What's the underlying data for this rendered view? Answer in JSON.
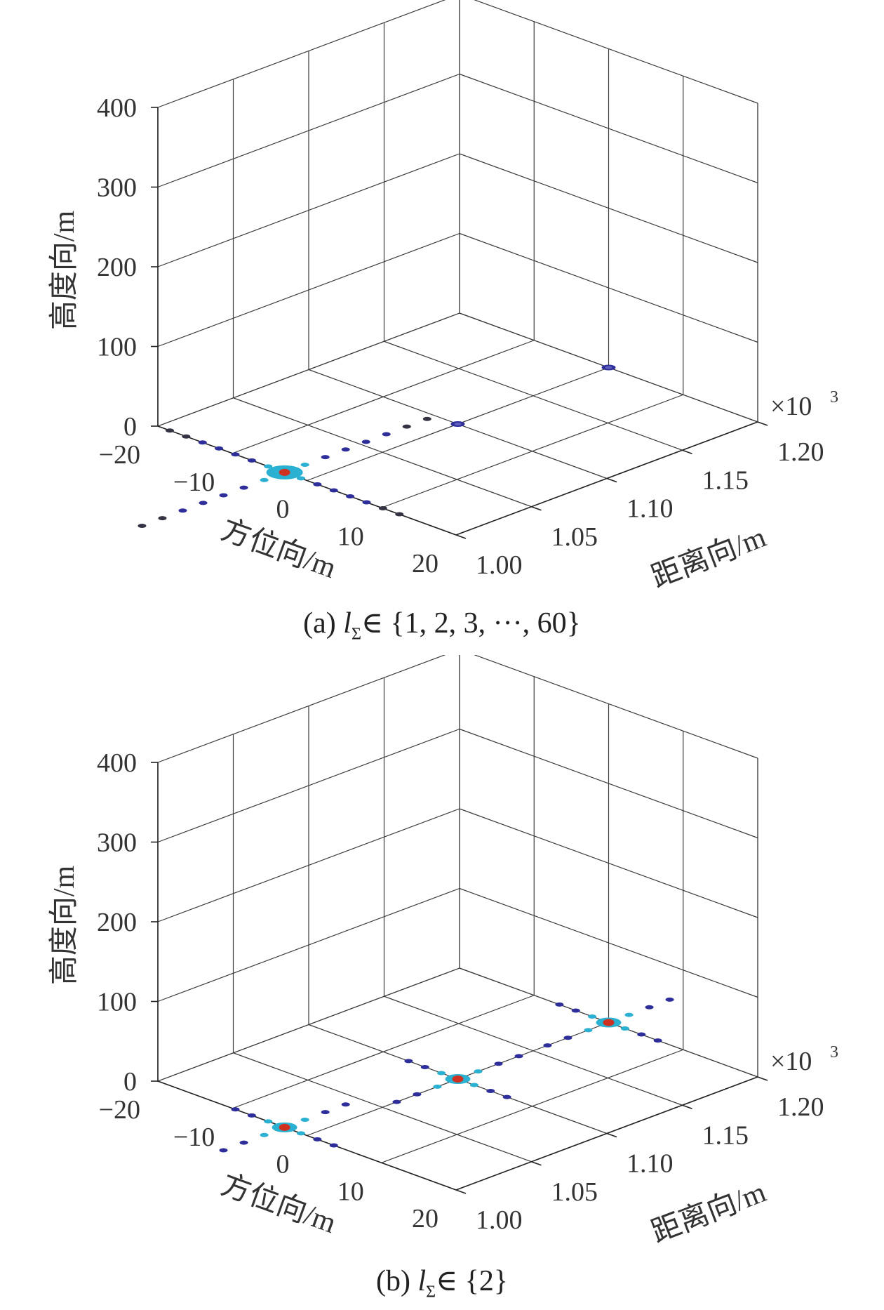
{
  "chart_data": [
    {
      "type": "scatter3d",
      "caption": {
        "prefix": "(a) ",
        "var": "l",
        "sub": "Σ",
        "set": "∈ {1, 2, 3, ···, 60}"
      },
      "xlabel": "方位向/m",
      "ylabel": "距离向/m",
      "zlabel": "高度向/m",
      "xlim": [
        -20,
        20
      ],
      "ylim": [
        1.0,
        1.2
      ],
      "zlim": [
        0,
        400
      ],
      "xticks": [
        "−20",
        "−10",
        "0",
        "10",
        "20"
      ],
      "yticks": [
        "1.00",
        "1.05",
        "1.10",
        "1.15",
        "1.20"
      ],
      "zticks": [
        "0",
        "100",
        "200",
        "300",
        "400"
      ],
      "y_multiplier": "×10",
      "y_multiplier_exp": "3",
      "points": [
        {
          "x": -3,
          "y": 1.0,
          "z": 0,
          "kind": "main-cross"
        },
        {
          "x": 0,
          "y": 1.1,
          "z": 0,
          "kind": "small"
        },
        {
          "x": 0,
          "y": 1.2,
          "z": 0,
          "kind": "small"
        }
      ],
      "colors": {
        "low": "#2e2e9a",
        "mid": "#2ab0d0",
        "high": "#d03020",
        "dark": "#333344"
      }
    },
    {
      "type": "scatter3d",
      "caption": {
        "prefix": "(b) ",
        "var": "l",
        "sub": "Σ",
        "set": "∈ {2}"
      },
      "xlabel": "方位向/m",
      "ylabel": "距离向/m",
      "zlabel": "高度向/m",
      "xlim": [
        -20,
        20
      ],
      "ylim": [
        1.0,
        1.2
      ],
      "zlim": [
        0,
        400
      ],
      "xticks": [
        "−20",
        "−10",
        "0",
        "10",
        "20"
      ],
      "yticks": [
        "1.00",
        "1.05",
        "1.10",
        "1.15",
        "1.20"
      ],
      "zticks": [
        "0",
        "100",
        "200",
        "300",
        "400"
      ],
      "y_multiplier": "×10",
      "y_multiplier_exp": "3",
      "points": [
        {
          "x": -3,
          "y": 1.0,
          "z": 0,
          "kind": "cross"
        },
        {
          "x": 0,
          "y": 1.1,
          "z": 0,
          "kind": "cross"
        },
        {
          "x": 0,
          "y": 1.2,
          "z": 0,
          "kind": "cross"
        }
      ],
      "colors": {
        "low": "#2e2e9a",
        "mid": "#2ab0d0",
        "high": "#d03020",
        "dark": "#333344"
      }
    }
  ]
}
